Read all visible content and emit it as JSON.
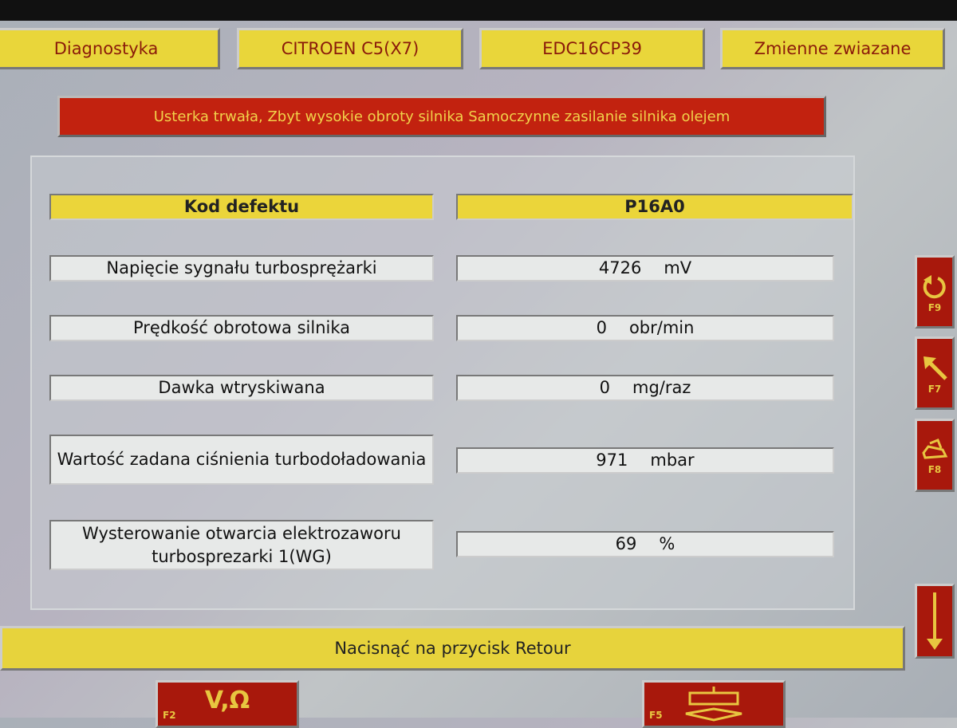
{
  "tabs": [
    "Diagnostyka",
    "CITROEN C5(X7)",
    "EDC16CP39",
    "Zmienne zwiazane"
  ],
  "alert": "Usterka trwała, Zbyt wysokie obroty silnika Samoczynne zasilanie silnika olejem",
  "header": {
    "label": "Kod defektu",
    "value": "P16A0"
  },
  "rows": [
    {
      "label": "Napięcie sygnału turbosprężarki",
      "value": "4726",
      "unit": "mV"
    },
    {
      "label": "Prędkość obrotowa silnika",
      "value": "0",
      "unit": "obr/min"
    },
    {
      "label": "Dawka wtryskiwana",
      "value": "0",
      "unit": "mg/raz"
    },
    {
      "label": "Wartość zadana ciśnienia turbodoładowania",
      "value": "971",
      "unit": "mbar"
    },
    {
      "label": "Wysterowanie otwarcia elektrozaworu turbosprezarki 1(WG)",
      "value": "69",
      "unit": "%"
    }
  ],
  "banner": "Nacisnąć na przycisk Retour",
  "side_buttons": [
    {
      "key": "F9",
      "icon": "undo-icon"
    },
    {
      "key": "F7",
      "icon": "arrow-up-left-icon"
    },
    {
      "key": "F8",
      "icon": "print-icon"
    },
    {
      "key": "",
      "icon": "arrow-down-icon"
    }
  ],
  "bottom_buttons": [
    {
      "key": "F2",
      "label": "V,Ω"
    },
    {
      "key": "F5",
      "icon": "diagram-icon"
    }
  ]
}
